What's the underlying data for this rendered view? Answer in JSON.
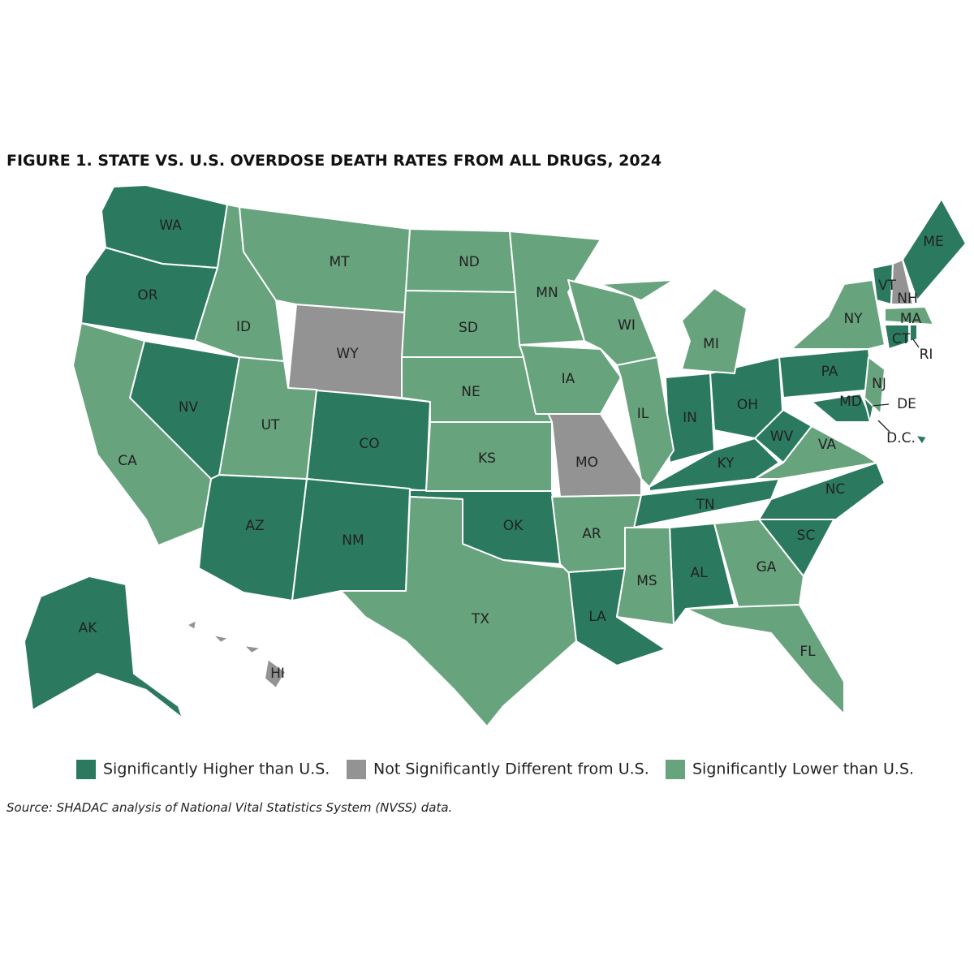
{
  "title": "FIGURE 1. STATE VS. U.S. OVERDOSE DEATH RATES FROM ALL DRUGS, 2024",
  "legend": [
    {
      "label": "Significantly Higher than U.S.",
      "color": "#2b7a5f",
      "states": [
        "WA",
        "OR",
        "NV",
        "AZ",
        "CO",
        "NM",
        "OK",
        "LA",
        "AL",
        "TN",
        "KY",
        "IN",
        "OH",
        "WV",
        "PA",
        "MD",
        "SC",
        "NC",
        "ME",
        "VT",
        "CT",
        "RI",
        "DE",
        "D.C.",
        "AK"
      ]
    },
    {
      "label": "Not Significantly Different from U.S.",
      "color": "#939393",
      "states": [
        "WY",
        "MO",
        "NH",
        "HI"
      ]
    },
    {
      "label": "Significantly Lower than U.S.",
      "color": "#67a37c",
      "states": [
        "CA",
        "ID",
        "MT",
        "UT",
        "ND",
        "SD",
        "NE",
        "KS",
        "TX",
        "MN",
        "IA",
        "AR",
        "MS",
        "WI",
        "IL",
        "MI",
        "GA",
        "FL",
        "VA",
        "NY",
        "MA",
        "NJ"
      ]
    }
  ],
  "source": "Source: SHADAC analysis of National Vital Statistics System (NVSS) data."
}
